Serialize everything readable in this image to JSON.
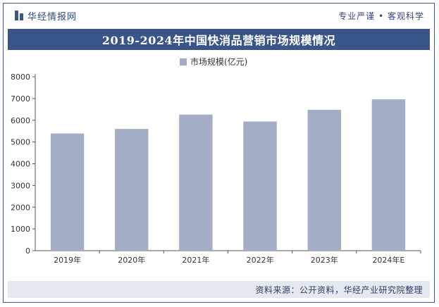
{
  "header": {
    "brand_name": "华经情报网",
    "slogan": "专业严谨 • 客观科学"
  },
  "footer": {
    "source": "资料来源：公开资料，华经产业研究院整理"
  },
  "colors": {
    "bar": "#a3adc6",
    "title_bar": "#3a5688",
    "footer_bg": "#e3e8f1"
  },
  "chart_data": {
    "type": "bar",
    "title": "2019-2024年中国快消品营销市场规模情况",
    "categories": [
      "2019年",
      "2020年",
      "2021年",
      "2022年",
      "2023年",
      "2024年E"
    ],
    "series": [
      {
        "name": "市场规模(亿元)",
        "values": [
          5390,
          5600,
          6260,
          5940,
          6480,
          6960
        ]
      }
    ],
    "ylim": [
      0,
      8000
    ],
    "yticks": [
      0,
      1000,
      2000,
      3000,
      4000,
      5000,
      6000,
      7000,
      8000
    ],
    "grid": false,
    "legend": "top-center"
  }
}
